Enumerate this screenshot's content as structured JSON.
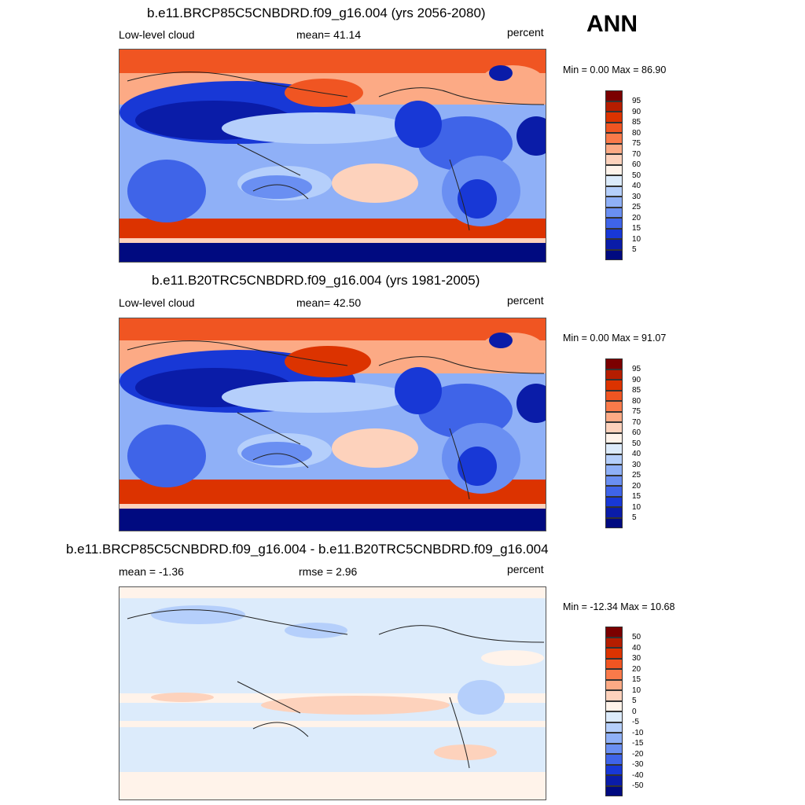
{
  "season": "ANN",
  "panels": [
    {
      "title": "b.e11.BRCP85C5CNBDRD.f09_g16.004 (yrs 2056-2080)",
      "left_label": "Low-level cloud",
      "center_label": "mean=  41.14",
      "right_label": "percent",
      "minmax": "Min =   0.00 Max =  86.90",
      "colorbar_labels": [
        "95",
        "90",
        "85",
        "80",
        "75",
        "70",
        "60",
        "50",
        "40",
        "30",
        "25",
        "20",
        "15",
        "10",
        "5"
      ],
      "kind": "abs"
    },
    {
      "title": "b.e11.B20TRC5CNBDRD.f09_g16.004 (yrs 1981-2005)",
      "left_label": "Low-level cloud",
      "center_label": "mean=  42.50",
      "right_label": "percent",
      "minmax": "Min =   0.00 Max =  91.07",
      "colorbar_labels": [
        "95",
        "90",
        "85",
        "80",
        "75",
        "70",
        "60",
        "50",
        "40",
        "30",
        "25",
        "20",
        "15",
        "10",
        "5"
      ],
      "kind": "abs"
    },
    {
      "title": "b.e11.BRCP85C5CNBDRD.f09_g16.004 - b.e11.B20TRC5CNBDRD.f09_g16.004",
      "left_label": "mean =  -1.36",
      "center_label": "rmse =   2.96",
      "right_label": "percent",
      "minmax": "Min = -12.34 Max =  10.68",
      "colorbar_labels": [
        "50",
        "40",
        "30",
        "20",
        "15",
        "10",
        "5",
        "0",
        "-5",
        "-10",
        "-15",
        "-20",
        "-30",
        "-40",
        "-50"
      ],
      "kind": "diff"
    }
  ],
  "colors": {
    "scale": [
      "#7b0000",
      "#b51d00",
      "#dc3300",
      "#f05522",
      "#fa7a4a",
      "#fcaa85",
      "#fdd2bc",
      "#fff3ea",
      "#dcebfb",
      "#b5cffb",
      "#8fb0f7",
      "#6a8ff2",
      "#3f64e8",
      "#1838d6",
      "#0a1ca8",
      "#000a80"
    ]
  }
}
